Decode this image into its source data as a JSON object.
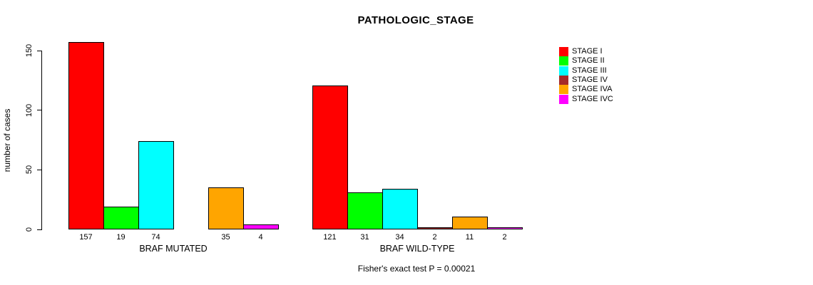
{
  "chart_data": {
    "type": "bar",
    "title": "PATHOLOGIC_STAGE",
    "ylabel": "number of cases",
    "xlabel": "",
    "ylim": [
      0,
      150
    ],
    "y_ticks": [
      0,
      50,
      100,
      150
    ],
    "grid": false,
    "legend_position": "right",
    "stages": [
      {
        "label": "STAGE I",
        "color": "#FF0000"
      },
      {
        "label": "STAGE II",
        "color": "#00FF00"
      },
      {
        "label": "STAGE III",
        "color": "#00FFFF"
      },
      {
        "label": "STAGE IV",
        "color": "#A52A2A"
      },
      {
        "label": "STAGE IVA",
        "color": "#FFA500"
      },
      {
        "label": "STAGE IVC",
        "color": "#FF00FF"
      }
    ],
    "groups": [
      {
        "label": "BRAF MUTATED",
        "values": [
          157,
          19,
          74,
          0,
          35,
          4
        ]
      },
      {
        "label": "BRAF WILD-TYPE",
        "values": [
          121,
          31,
          34,
          2,
          11,
          2
        ]
      }
    ],
    "annotation": "Fisher's exact test P = 0.00021"
  }
}
